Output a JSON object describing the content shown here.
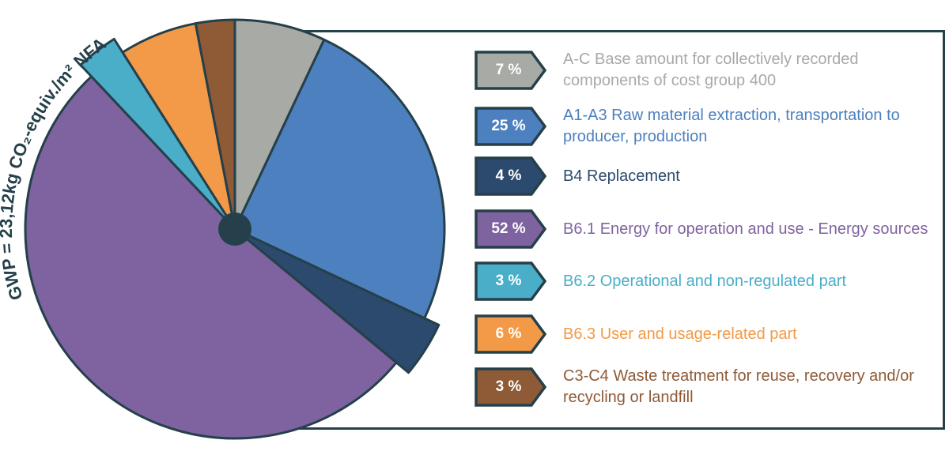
{
  "chart_data": {
    "type": "pie",
    "title": "GWP = 23,12kg CO₂-equiv./m² NFA a",
    "start_angle": "12 o'clock, clockwise",
    "slices": [
      {
        "label": "A-C Base amount for collectively recorded components of cost group 400",
        "value": 7,
        "display": "7 %",
        "color": "#a8aaa5",
        "exploded": false
      },
      {
        "label": "A1-A3 Raw material extraction, transportation to producer, production",
        "value": 25,
        "display": "25 %",
        "color": "#4d80be",
        "exploded": false
      },
      {
        "label": "B4 Replacement",
        "value": 4,
        "display": "4 %",
        "color": "#2c4a6e",
        "exploded": true
      },
      {
        "label": "B6.1 Energy for operation and use - Energy sources",
        "value": 52,
        "display": "52 %",
        "color": "#7f63a0",
        "exploded": false
      },
      {
        "label": "B6.2 Operational and non-regulated part",
        "value": 3,
        "display": "3 %",
        "color": "#4aaec8",
        "exploded": true
      },
      {
        "label": "B6.3 User and usage-related part",
        "value": 6,
        "display": "6 %",
        "color": "#f29a48",
        "exploded": false
      },
      {
        "label": "C3-C4 Waste treatment for reuse, recovery and/or recycling or landfill",
        "value": 3,
        "display": "3 %",
        "color": "#8f5a36",
        "exploded": false
      }
    ],
    "legend_placement": "right",
    "outline_color": "#25404a"
  }
}
